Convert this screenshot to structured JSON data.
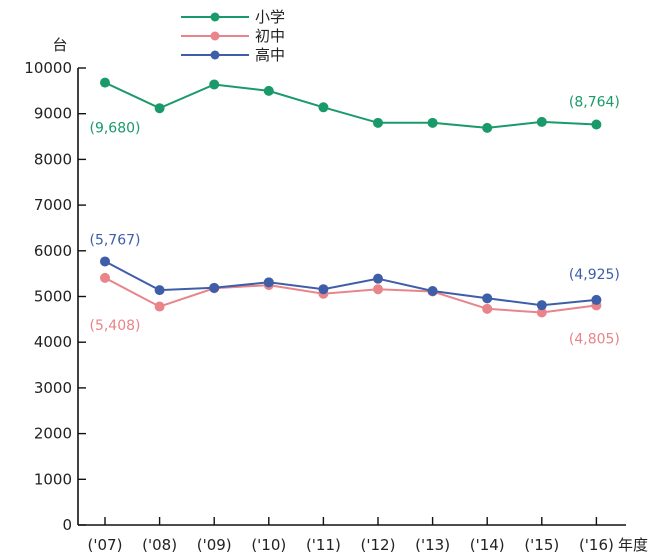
{
  "chart_data": {
    "type": "line",
    "categories": [
      "('07)",
      "('08)",
      "('09)",
      "('10)",
      "('11)",
      "('12)",
      "('13)",
      "('14)",
      "('15)",
      "('16)"
    ],
    "x_unit": "年度",
    "y_unit": "台",
    "ylim": [
      0,
      10000
    ],
    "yticks": [
      0,
      1000,
      2000,
      3000,
      4000,
      5000,
      6000,
      7000,
      8000,
      9000,
      10000
    ],
    "grid": false,
    "legend_position": "top-center",
    "series": [
      {
        "name": "小学",
        "color": "#1a9a6a",
        "values": [
          9680,
          9120,
          9640,
          9500,
          9140,
          8800,
          8800,
          8690,
          8820,
          8764
        ],
        "labels": [
          {
            "index": 0,
            "text": "(9,680)"
          },
          {
            "index": 9,
            "text": "(8,764)"
          }
        ]
      },
      {
        "name": "初中",
        "color": "#e8848a",
        "values": [
          5408,
          4780,
          5180,
          5250,
          5060,
          5160,
          5110,
          4730,
          4650,
          4805
        ],
        "labels": [
          {
            "index": 0,
            "text": "(5,408)"
          },
          {
            "index": 9,
            "text": "(4,805)"
          }
        ]
      },
      {
        "name": "高中",
        "color": "#3f5ea8",
        "values": [
          5767,
          5140,
          5190,
          5310,
          5160,
          5390,
          5120,
          4960,
          4810,
          4925
        ],
        "labels": [
          {
            "index": 0,
            "text": "(5,767)"
          },
          {
            "index": 9,
            "text": "(4,925)"
          }
        ]
      }
    ]
  }
}
